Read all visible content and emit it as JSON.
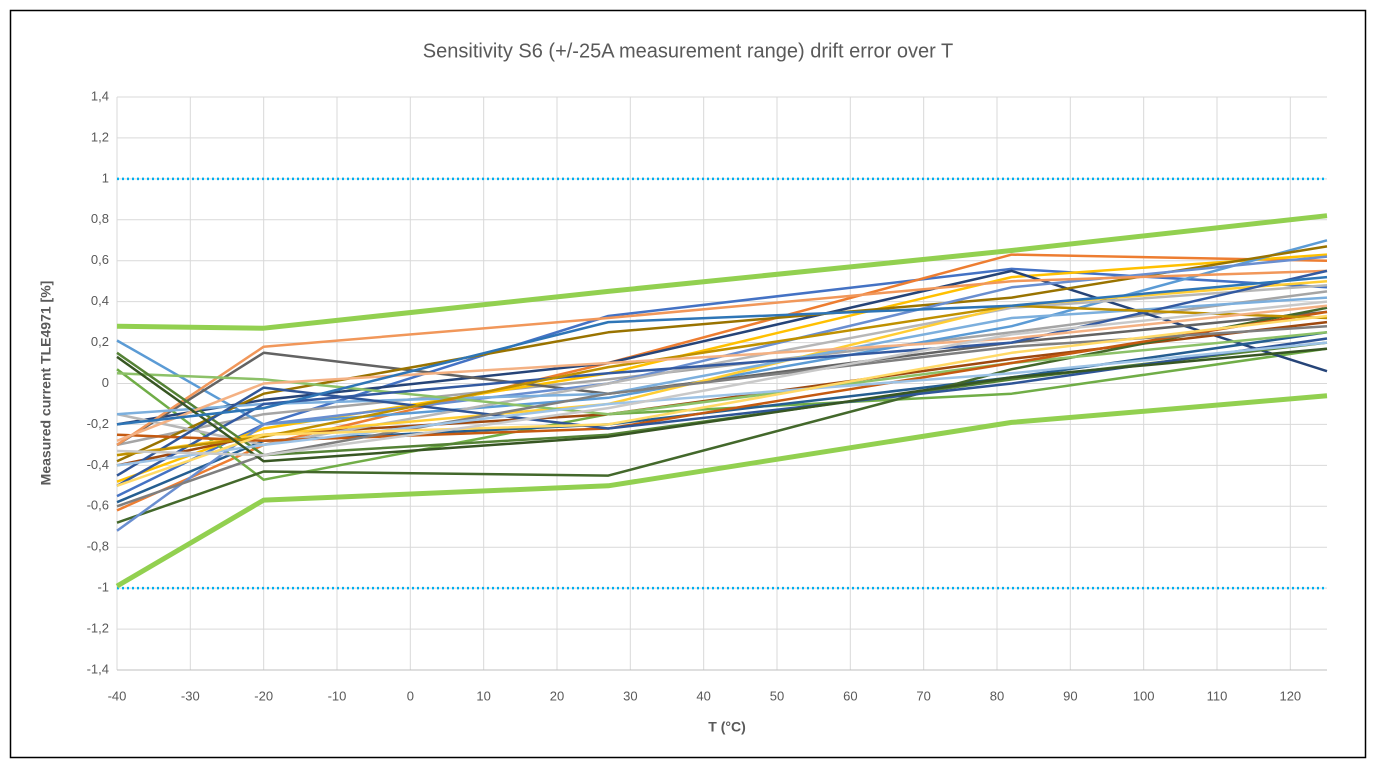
{
  "chart_data": {
    "type": "line",
    "title": "Sensitivity S6 (+/-25A measurement  range)  drift error over T",
    "x_label": "T (°C)",
    "y_label": "Measured current TLE4971 [%]",
    "x": [
      -40,
      -20,
      27,
      82,
      125
    ],
    "xlim": [
      -40,
      125
    ],
    "xticks": [
      -40,
      -30,
      -20,
      -10,
      0,
      10,
      20,
      30,
      40,
      50,
      60,
      70,
      80,
      90,
      100,
      110,
      120
    ],
    "ylim": [
      -1.4,
      1.4
    ],
    "yticks": [
      {
        "value": -1.4,
        "label": "-1,4"
      },
      {
        "value": -1.2,
        "label": "-1,2"
      },
      -1,
      {
        "value": -0.8,
        "label": "-0,8"
      },
      {
        "value": -0.6,
        "label": "-0,6"
      },
      {
        "value": -0.4,
        "label": "-0,4"
      },
      {
        "value": -0.2,
        "label": "-0,2"
      },
      0,
      {
        "value": 0.2,
        "label": "0,2"
      },
      {
        "value": 0.4,
        "label": "0,4"
      },
      {
        "value": 0.6,
        "label": "0,6"
      },
      {
        "value": 0.8,
        "label": "0,8"
      },
      1,
      {
        "value": 1.2,
        "label": "1,2"
      },
      {
        "value": 1.4,
        "label": "1,4"
      }
    ],
    "grid": true,
    "series": [
      {
        "color": "#00b0f0",
        "dash": "dotted",
        "line_width": 2.5,
        "values": [
          1,
          1,
          1,
          1,
          1
        ]
      },
      {
        "color": "#00b0f0",
        "dash": "dotted",
        "line_width": 2.5,
        "values": [
          -1,
          -1,
          -1,
          -1,
          -1
        ]
      },
      {
        "color": "#4472c4",
        "values": [
          -0.55,
          -0.2,
          0.33,
          0.56,
          0.47
        ]
      },
      {
        "color": "#ed7d31",
        "values": [
          -0.62,
          -0.3,
          0.1,
          0.63,
          0.6
        ]
      },
      {
        "color": "#a5a5a5",
        "values": [
          -0.3,
          -0.15,
          0.02,
          0.25,
          0.45
        ]
      },
      {
        "color": "#ffc000",
        "values": [
          -0.48,
          -0.22,
          0.05,
          0.52,
          0.63
        ]
      },
      {
        "color": "#5b9bd5",
        "values": [
          0.21,
          -0.2,
          -0.07,
          0.28,
          0.7
        ]
      },
      {
        "color": "#70ad47",
        "values": [
          0.07,
          -0.47,
          -0.15,
          -0.05,
          0.17
        ]
      },
      {
        "color": "#264478",
        "values": [
          -0.2,
          -0.08,
          0.1,
          0.55,
          0.06
        ]
      },
      {
        "color": "#9e480e",
        "values": [
          -0.4,
          -0.25,
          -0.15,
          0.12,
          0.3
        ]
      },
      {
        "color": "#636363",
        "values": [
          -0.3,
          0.15,
          -0.05,
          0.2,
          0.35
        ]
      },
      {
        "color": "#997300",
        "values": [
          -0.38,
          -0.05,
          0.25,
          0.42,
          0.67
        ]
      },
      {
        "color": "#255e91",
        "values": [
          -0.58,
          -0.28,
          -0.2,
          0.03,
          0.25
        ]
      },
      {
        "color": "#43682b",
        "values": [
          -0.68,
          -0.43,
          -0.45,
          0.07,
          0.37
        ]
      },
      {
        "color": "#698ed0",
        "values": [
          -0.72,
          -0.2,
          0.0,
          0.47,
          0.62
        ]
      },
      {
        "color": "#f1975a",
        "values": [
          -0.3,
          0.18,
          0.32,
          0.5,
          0.55
        ]
      },
      {
        "color": "#b7b7b7",
        "values": [
          -0.15,
          -0.3,
          0.0,
          0.37,
          0.48
        ]
      },
      {
        "color": "#ffcd33",
        "values": [
          -0.35,
          -0.25,
          -0.1,
          0.38,
          0.5
        ]
      },
      {
        "color": "#7cafdd",
        "values": [
          -0.15,
          -0.1,
          -0.05,
          0.32,
          0.42
        ]
      },
      {
        "color": "#8cc168",
        "values": [
          0.05,
          0.02,
          -0.15,
          0.1,
          0.25
        ]
      },
      {
        "color": "#335aa1",
        "values": [
          -0.5,
          -0.1,
          0.05,
          0.2,
          0.55
        ]
      },
      {
        "color": "#548235",
        "values": [
          0.15,
          -0.35,
          -0.25,
          0.02,
          0.2
        ]
      },
      {
        "color": "#c55a11",
        "values": [
          -0.25,
          -0.28,
          -0.22,
          0.1,
          0.35
        ]
      },
      {
        "color": "#2f5597",
        "values": [
          -0.45,
          -0.02,
          -0.22,
          0.0,
          0.22
        ]
      },
      {
        "color": "#bf9000",
        "values": [
          -0.35,
          -0.26,
          0.08,
          0.38,
          0.32
        ]
      },
      {
        "color": "#7f7f7f",
        "values": [
          -0.6,
          -0.35,
          -0.05,
          0.18,
          0.28
        ]
      },
      {
        "color": "#f4b183",
        "values": [
          -0.28,
          0.0,
          0.1,
          0.22,
          0.38
        ]
      },
      {
        "color": "#9dc3e6",
        "values": [
          -0.4,
          -0.3,
          -0.1,
          0.05,
          0.2
        ]
      },
      {
        "color": "#ffd966",
        "values": [
          -0.5,
          -0.25,
          -0.2,
          0.15,
          0.33
        ]
      },
      {
        "color": "#375623",
        "values": [
          0.13,
          -0.38,
          -0.26,
          0.03,
          0.17
        ]
      },
      {
        "color": "#c9c9c9",
        "values": [
          -0.33,
          -0.35,
          -0.12,
          0.24,
          0.4
        ]
      },
      {
        "color": "#2e75b6",
        "values": [
          -0.2,
          -0.12,
          0.3,
          0.38,
          0.52
        ]
      },
      {
        "color": "#92d050",
        "line_width": 5,
        "values": [
          0.28,
          0.27,
          0.45,
          0.65,
          0.82
        ]
      },
      {
        "color": "#92d050",
        "line_width": 5,
        "values": [
          -0.99,
          -0.57,
          -0.5,
          -0.19,
          -0.06
        ]
      }
    ]
  }
}
